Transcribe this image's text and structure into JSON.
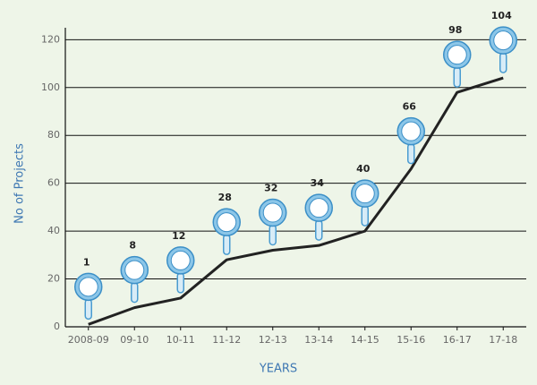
{
  "chart_data": {
    "type": "line",
    "categories": [
      "2008-09",
      "09-10",
      "10-11",
      "11-12",
      "12-13",
      "13-14",
      "14-15",
      "15-16",
      "16-17",
      "17-18"
    ],
    "values": [
      1,
      8,
      12,
      28,
      32,
      34,
      40,
      66,
      98,
      104
    ],
    "color": "#222222",
    "ylim": [
      0,
      125
    ],
    "yticks": [
      0,
      20,
      40,
      60,
      80,
      100,
      120
    ],
    "grid": true,
    "ylabel": "No of Projects",
    "xlabel": "YEARS"
  }
}
